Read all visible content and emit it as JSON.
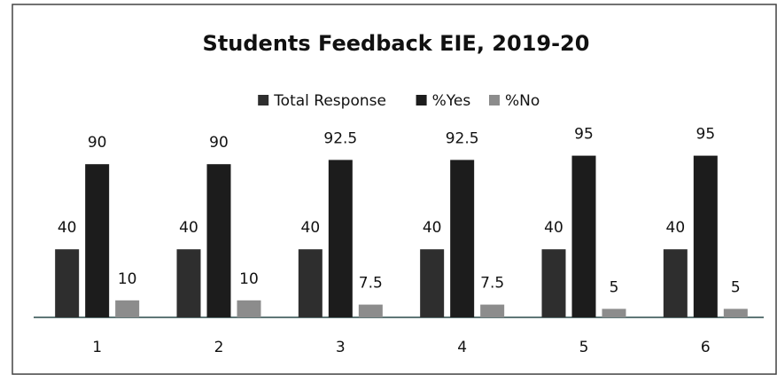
{
  "chart_data": {
    "type": "bar",
    "title": "Students Feedback EIE, 2019-20",
    "categories": [
      "1",
      "2",
      "3",
      "4",
      "5",
      "6"
    ],
    "series": [
      {
        "name": "Total Response",
        "color": "#2e2e2e",
        "values": [
          40,
          40,
          40,
          40,
          40,
          40
        ]
      },
      {
        "name": "%Yes",
        "color": "#1c1c1c",
        "values": [
          90,
          90,
          92.5,
          92.5,
          95,
          95
        ]
      },
      {
        "name": "%No",
        "color": "#8c8c8c",
        "values": [
          10,
          10,
          7.5,
          7.5,
          5,
          5
        ]
      }
    ],
    "legend": "top"
  }
}
